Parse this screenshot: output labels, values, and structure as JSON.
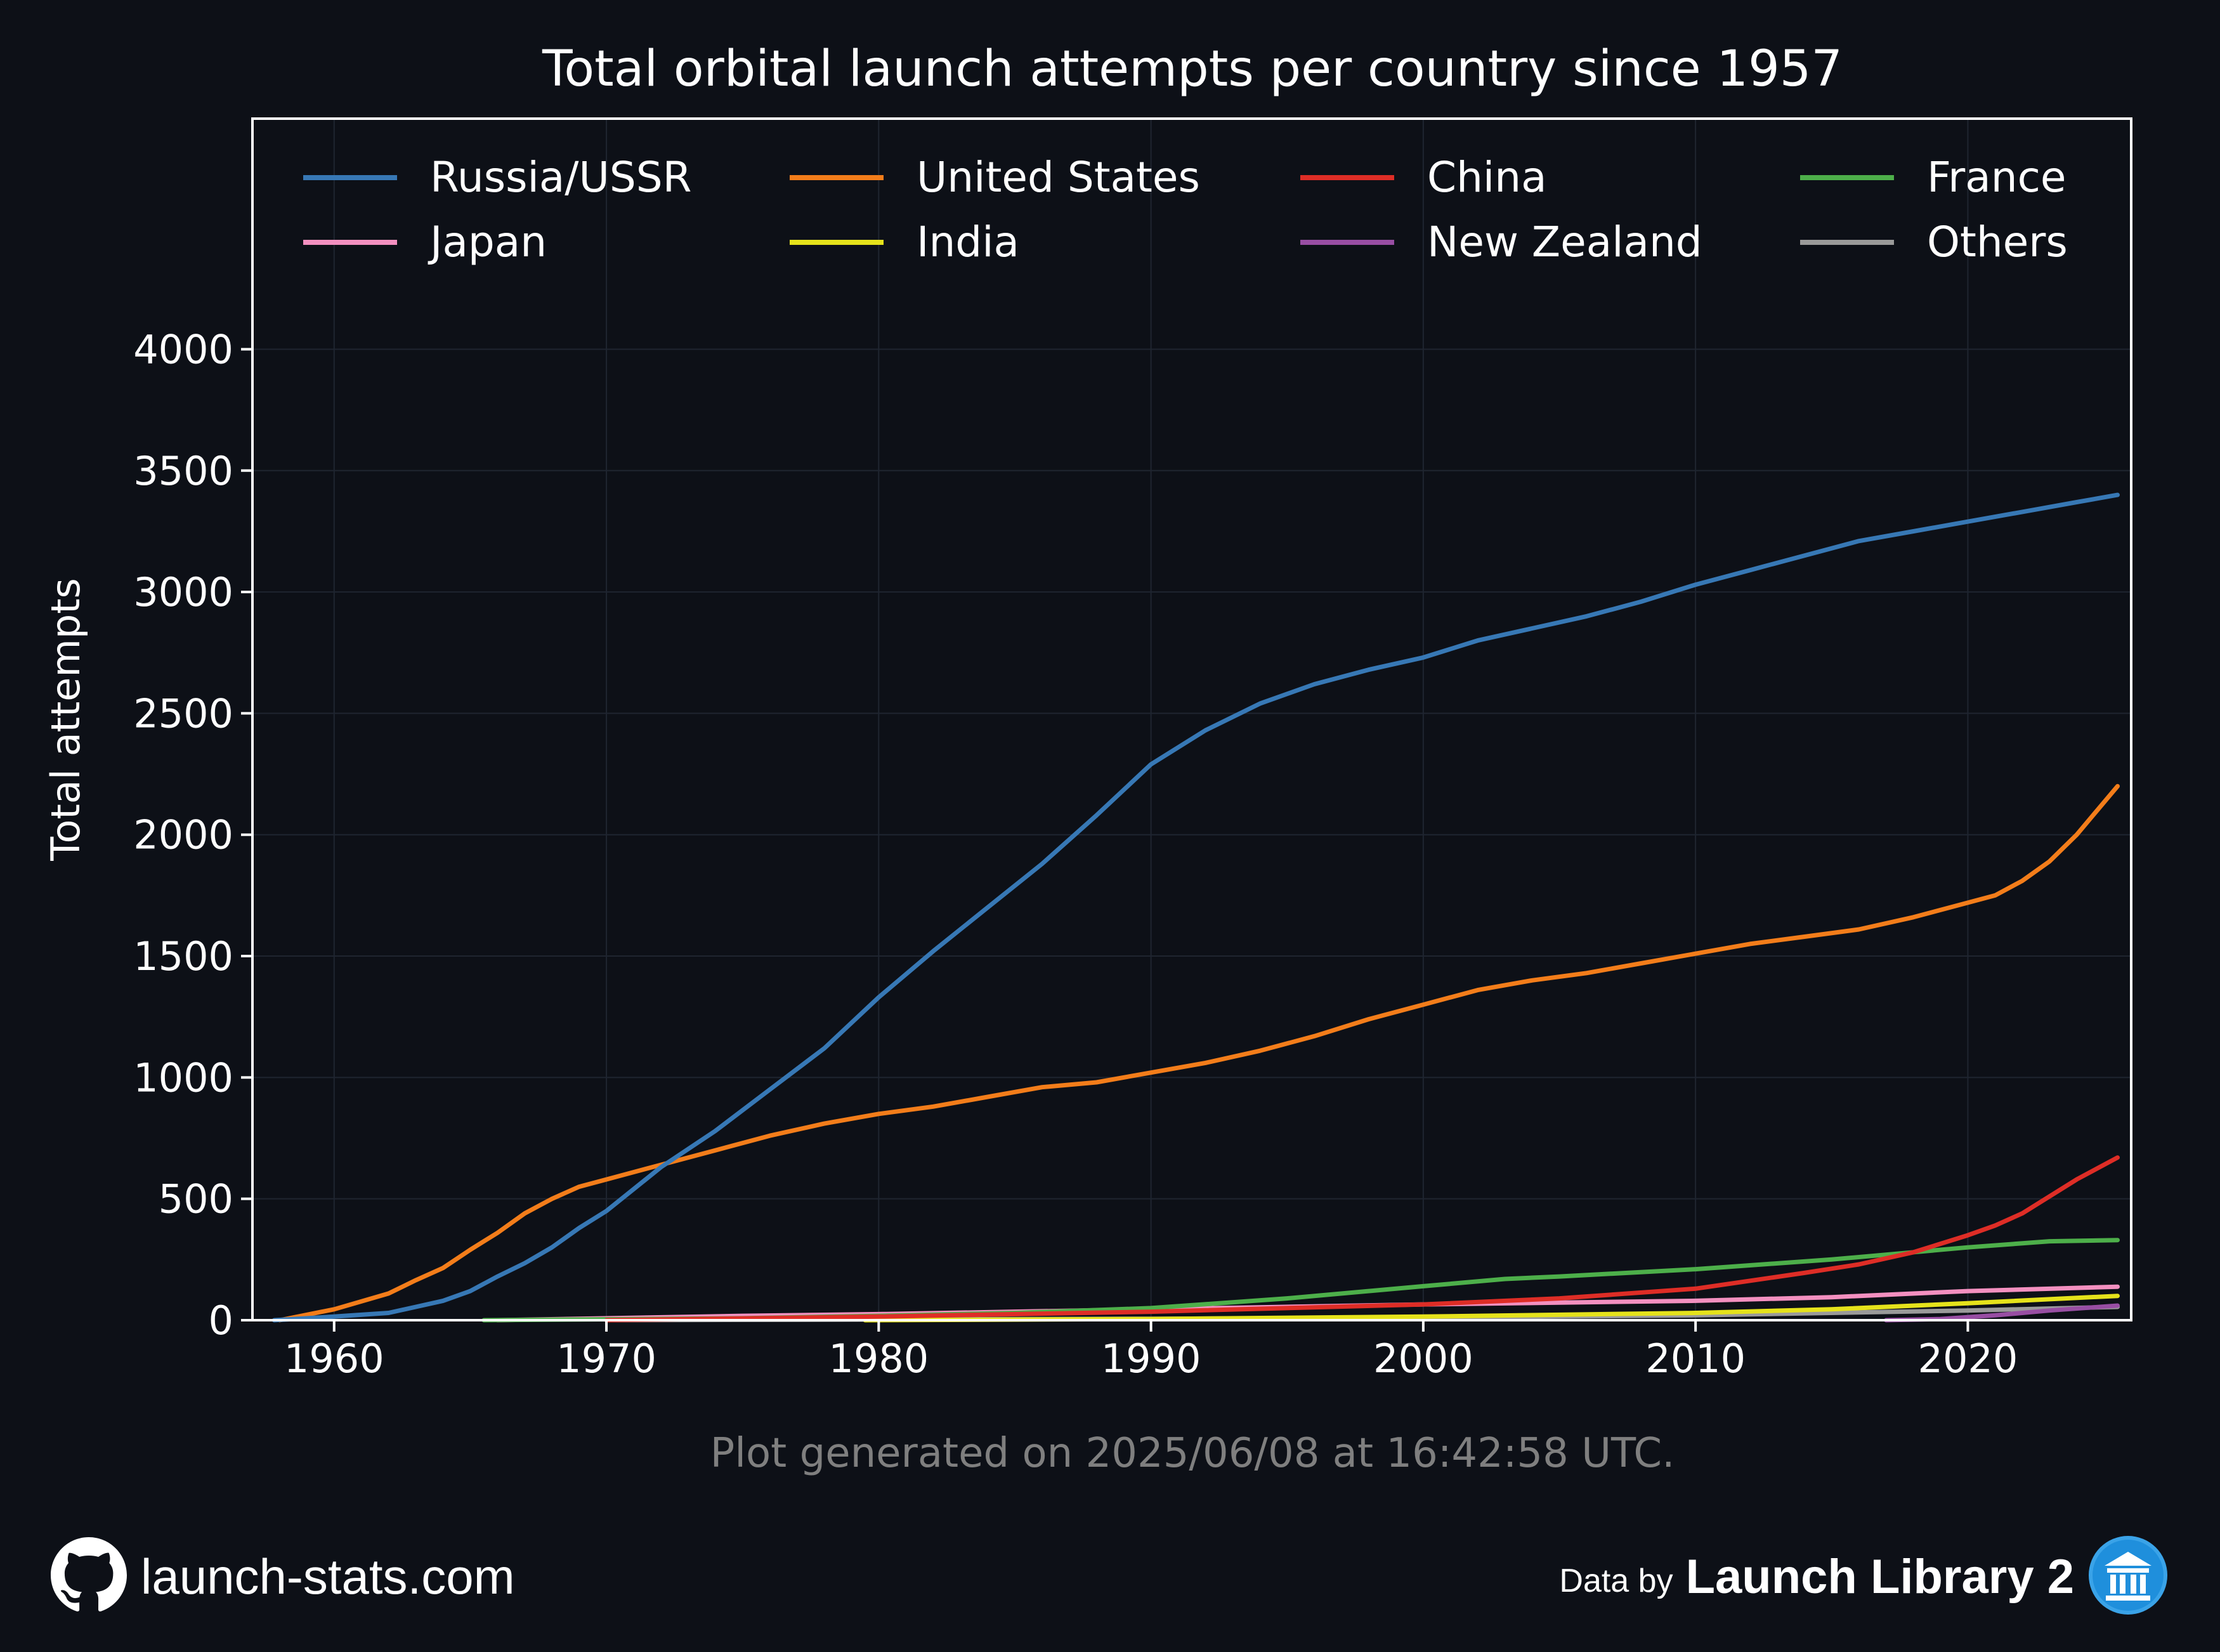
{
  "chart_data": {
    "type": "line",
    "title": "Total orbital launch attempts per country since 1957",
    "ylabel": "Total attempts",
    "xlabel": "",
    "xlim": [
      1957,
      2026
    ],
    "ylim": [
      0,
      4950
    ],
    "xticks": [
      1960,
      1970,
      1980,
      1990,
      2000,
      2010,
      2020
    ],
    "yticks": [
      0,
      500,
      1000,
      1500,
      2000,
      2500,
      3000,
      3500,
      4000
    ],
    "grid": true,
    "legend_position": "top",
    "series": [
      {
        "name": "Russia/USSR",
        "color": "#3778b5",
        "x": [
          1957.8,
          1960,
          1962,
          1963,
          1964,
          1965,
          1966,
          1967,
          1968,
          1969,
          1970,
          1971,
          1972,
          1974,
          1976,
          1978,
          1980,
          1982,
          1984,
          1986,
          1988,
          1990,
          1992,
          1994,
          1996,
          1998,
          2000,
          2002,
          2004,
          2006,
          2008,
          2010,
          2012,
          2014,
          2016,
          2018,
          2020,
          2022,
          2024,
          2025.5
        ],
        "y": [
          0,
          15,
          30,
          55,
          80,
          120,
          180,
          235,
          300,
          380,
          450,
          540,
          630,
          780,
          950,
          1120,
          1330,
          1520,
          1700,
          1880,
          2080,
          2290,
          2430,
          2540,
          2620,
          2680,
          2730,
          2800,
          2850,
          2900,
          2960,
          3030,
          3090,
          3150,
          3210,
          3250,
          3290,
          3330,
          3370,
          3400
        ]
      },
      {
        "name": "United States",
        "color": "#f37d1a",
        "x": [
          1958,
          1960,
          1962,
          1963,
          1964,
          1965,
          1966,
          1967,
          1968,
          1969,
          1970,
          1972,
          1974,
          1976,
          1978,
          1980,
          1982,
          1984,
          1986,
          1988,
          1990,
          1992,
          1994,
          1996,
          1998,
          2000,
          2002,
          2004,
          2006,
          2008,
          2010,
          2012,
          2014,
          2016,
          2018,
          2020,
          2021,
          2022,
          2023,
          2024,
          2025.5
        ],
        "y": [
          0,
          45,
          110,
          165,
          215,
          290,
          360,
          440,
          500,
          550,
          580,
          640,
          700,
          760,
          810,
          850,
          880,
          920,
          960,
          980,
          1020,
          1060,
          1110,
          1170,
          1240,
          1300,
          1360,
          1400,
          1430,
          1470,
          1510,
          1550,
          1580,
          1610,
          1660,
          1720,
          1750,
          1810,
          1890,
          2000,
          2200
        ]
      },
      {
        "name": "China",
        "color": "#de2d26",
        "x": [
          1970,
          1980,
          1990,
          2000,
          2005,
          2010,
          2014,
          2016,
          2018,
          2020,
          2021,
          2022,
          2023,
          2024,
          2025.5
        ],
        "y": [
          0,
          15,
          35,
          65,
          90,
          130,
          195,
          230,
          280,
          350,
          390,
          440,
          510,
          580,
          670
        ]
      },
      {
        "name": "France",
        "color": "#4daf4a",
        "x": [
          1965.5,
          1975,
          1980,
          1985,
          1990,
          1995,
          2000,
          2003,
          2005,
          2010,
          2015,
          2020,
          2023,
          2025.5
        ],
        "y": [
          0,
          8,
          18,
          30,
          50,
          90,
          140,
          170,
          180,
          210,
          250,
          300,
          325,
          330
        ]
      },
      {
        "name": "Japan",
        "color": "#f390c0",
        "x": [
          1966,
          1975,
          1980,
          1990,
          2000,
          2010,
          2015,
          2020,
          2025.5
        ],
        "y": [
          0,
          18,
          25,
          45,
          65,
          80,
          95,
          120,
          138
        ]
      },
      {
        "name": "India",
        "color": "#e5e21b",
        "x": [
          1979.5,
          1990,
          2000,
          2010,
          2015,
          2020,
          2025.5
        ],
        "y": [
          0,
          5,
          15,
          30,
          45,
          70,
          100
        ]
      },
      {
        "name": "New Zealand",
        "color": "#984ea3",
        "x": [
          2017,
          2019,
          2021,
          2023,
          2025.5
        ],
        "y": [
          0,
          5,
          20,
          40,
          60
        ]
      },
      {
        "name": "Others",
        "color": "#9a9a9a",
        "x": [
          1970,
          1980,
          1990,
          2000,
          2010,
          2020,
          2025.5
        ],
        "y": [
          0,
          3,
          6,
          10,
          20,
          40,
          55
        ]
      }
    ]
  },
  "footnote": "Plot generated on 2025/06/08 at 16:42:58 UTC.",
  "footer": {
    "site": "launch-stats.com",
    "data_by": "Data by",
    "source": "Launch Library 2",
    "github_icon": "github-icon",
    "library_icon": "library-icon"
  },
  "colors": {
    "background": "#0d1017",
    "grid": "#1f2530",
    "axes": "#ffffff",
    "footnote": "#8a8a8a"
  }
}
